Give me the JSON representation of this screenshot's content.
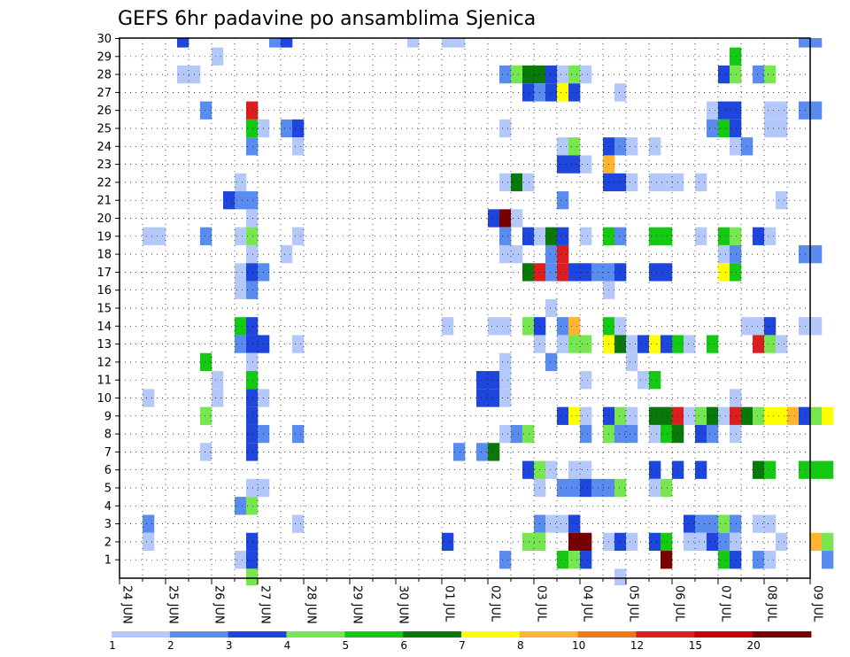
{
  "chart_data": {
    "type": "heatmap",
    "title": "GEFS 6hr padavine po ansamblima Sjenica",
    "xlabel": "",
    "ylabel": "",
    "y_ticks": [
      "1",
      "2",
      "3",
      "4",
      "5",
      "6",
      "7",
      "8",
      "9",
      "10",
      "11",
      "12",
      "13",
      "14",
      "15",
      "16",
      "17",
      "18",
      "19",
      "20",
      "21",
      "22",
      "23",
      "24",
      "25",
      "26",
      "27",
      "28",
      "29",
      "30"
    ],
    "x_ticks": [
      "24 JUN",
      "25 JUN",
      "26 JUN",
      "27 JUN",
      "28 JUN",
      "29 JUN",
      "30 JUN",
      "01 JUL",
      "02 JUL",
      "03 JUL",
      "04 JUL",
      "05 JUL",
      "06 JUL",
      "07 JUL",
      "08 JUL",
      "09 JUL"
    ],
    "colorbar": {
      "ticks": [
        "1",
        "2",
        "3",
        "4",
        "5",
        "6",
        "7",
        "8",
        "10",
        "12",
        "15",
        "20"
      ],
      "colors": [
        "#b4c8fa",
        "#5a8cf0",
        "#1e46dc",
        "#78e650",
        "#14c814",
        "#0a780a",
        "#ffff00",
        "#ffb432",
        "#f07814",
        "#dc1e1e",
        "#c80000",
        "#780000"
      ]
    },
    "grid": true,
    "cells": [
      [
        2.5,
        30,
        3
      ],
      [
        6.5,
        30,
        2
      ],
      [
        7,
        30,
        3
      ],
      [
        12.5,
        30,
        1
      ],
      [
        14,
        30,
        1
      ],
      [
        14.5,
        30,
        1
      ],
      [
        29.5,
        30,
        2
      ],
      [
        30,
        30,
        2
      ],
      [
        4,
        29,
        1
      ],
      [
        26.5,
        29,
        5
      ],
      [
        2.5,
        28,
        1
      ],
      [
        3,
        28,
        1
      ],
      [
        16.5,
        28,
        2
      ],
      [
        17,
        28,
        4
      ],
      [
        17.5,
        28,
        6
      ],
      [
        18,
        28,
        6
      ],
      [
        18.5,
        28,
        3
      ],
      [
        19,
        28,
        1
      ],
      [
        19.5,
        28,
        4
      ],
      [
        20,
        28,
        1
      ],
      [
        26,
        28,
        3
      ],
      [
        26.5,
        28,
        4
      ],
      [
        27.5,
        28,
        2
      ],
      [
        28,
        28,
        4
      ],
      [
        17.5,
        27,
        3
      ],
      [
        18,
        27,
        2
      ],
      [
        18.5,
        27,
        3
      ],
      [
        19,
        27,
        7
      ],
      [
        19.5,
        27,
        3
      ],
      [
        21.5,
        27,
        1
      ],
      [
        3.5,
        26,
        2
      ],
      [
        5.5,
        26,
        10
      ],
      [
        25.5,
        26,
        1
      ],
      [
        26,
        26,
        3
      ],
      [
        26.5,
        26,
        3
      ],
      [
        28,
        26,
        1
      ],
      [
        28.5,
        26,
        1
      ],
      [
        29.5,
        26,
        2
      ],
      [
        30,
        26,
        2
      ],
      [
        5.5,
        25,
        5
      ],
      [
        6,
        25,
        1
      ],
      [
        7,
        25,
        2
      ],
      [
        7.5,
        25,
        3
      ],
      [
        16.5,
        25,
        1
      ],
      [
        25.5,
        25,
        2
      ],
      [
        26,
        25,
        5
      ],
      [
        26.5,
        25,
        3
      ],
      [
        28,
        25,
        1
      ],
      [
        28.5,
        25,
        1
      ],
      [
        5.5,
        24,
        2
      ],
      [
        7.5,
        24,
        1
      ],
      [
        19,
        24,
        1
      ],
      [
        19.5,
        24,
        4
      ],
      [
        21,
        24,
        3
      ],
      [
        21.5,
        24,
        2
      ],
      [
        22,
        24,
        1
      ],
      [
        23,
        24,
        1
      ],
      [
        26.5,
        24,
        1
      ],
      [
        27,
        24,
        2
      ],
      [
        19,
        23,
        3
      ],
      [
        19.5,
        23,
        3
      ],
      [
        20,
        23,
        1
      ],
      [
        21,
        23,
        8
      ],
      [
        5,
        22,
        1
      ],
      [
        16.5,
        22,
        1
      ],
      [
        17,
        22,
        6
      ],
      [
        17.5,
        22,
        1
      ],
      [
        21,
        22,
        3
      ],
      [
        21.5,
        22,
        3
      ],
      [
        22,
        22,
        1
      ],
      [
        23,
        22,
        1
      ],
      [
        23.5,
        22,
        1
      ],
      [
        24,
        22,
        1
      ],
      [
        25,
        22,
        1
      ],
      [
        4.5,
        21,
        3
      ],
      [
        5,
        21,
        2
      ],
      [
        5.5,
        21,
        2
      ],
      [
        19,
        21,
        2
      ],
      [
        28.5,
        21,
        1
      ],
      [
        5.5,
        20,
        1
      ],
      [
        16,
        20,
        3
      ],
      [
        16.5,
        20,
        12
      ],
      [
        17,
        20,
        1
      ],
      [
        1,
        19,
        1
      ],
      [
        1.5,
        19,
        1
      ],
      [
        3.5,
        19,
        2
      ],
      [
        5,
        19,
        1
      ],
      [
        5.5,
        19,
        4
      ],
      [
        7.5,
        19,
        1
      ],
      [
        16.5,
        19,
        2
      ],
      [
        17.5,
        19,
        3
      ],
      [
        18,
        19,
        1
      ],
      [
        18.5,
        19,
        6
      ],
      [
        19,
        19,
        3
      ],
      [
        20,
        19,
        1
      ],
      [
        21,
        19,
        5
      ],
      [
        21.5,
        19,
        2
      ],
      [
        23,
        19,
        5
      ],
      [
        23.5,
        19,
        5
      ],
      [
        25,
        19,
        1
      ],
      [
        26,
        19,
        5
      ],
      [
        26.5,
        19,
        4
      ],
      [
        27.5,
        19,
        3
      ],
      [
        28,
        19,
        1
      ],
      [
        5.5,
        18,
        1
      ],
      [
        7,
        18,
        1
      ],
      [
        16.5,
        18,
        1
      ],
      [
        17,
        18,
        1
      ],
      [
        18.5,
        18,
        2
      ],
      [
        19,
        18,
        10
      ],
      [
        26,
        18,
        1
      ],
      [
        26.5,
        18,
        2
      ],
      [
        29.5,
        18,
        2
      ],
      [
        30,
        18,
        2
      ],
      [
        5,
        17,
        1
      ],
      [
        5.5,
        17,
        3
      ],
      [
        6,
        17,
        2
      ],
      [
        17.5,
        17,
        6
      ],
      [
        18,
        17,
        10
      ],
      [
        18.5,
        17,
        2
      ],
      [
        19,
        17,
        10
      ],
      [
        19.5,
        17,
        3
      ],
      [
        20,
        17,
        3
      ],
      [
        20.5,
        17,
        2
      ],
      [
        21,
        17,
        2
      ],
      [
        21.5,
        17,
        3
      ],
      [
        23,
        17,
        3
      ],
      [
        23.5,
        17,
        3
      ],
      [
        26,
        17,
        7
      ],
      [
        26.5,
        17,
        5
      ],
      [
        5,
        16,
        1
      ],
      [
        5.5,
        16,
        2
      ],
      [
        21,
        16,
        1
      ],
      [
        18.5,
        15,
        1
      ],
      [
        5,
        14,
        5
      ],
      [
        5.5,
        14,
        3
      ],
      [
        14,
        14,
        1
      ],
      [
        16,
        14,
        1
      ],
      [
        16.5,
        14,
        1
      ],
      [
        17.5,
        14,
        4
      ],
      [
        18,
        14,
        3
      ],
      [
        19,
        14,
        2
      ],
      [
        19.5,
        14,
        8
      ],
      [
        21,
        14,
        5
      ],
      [
        21.5,
        14,
        1
      ],
      [
        27,
        14,
        1
      ],
      [
        27.5,
        14,
        1
      ],
      [
        28,
        14,
        3
      ],
      [
        29.5,
        14,
        1
      ],
      [
        30,
        14,
        1
      ],
      [
        5,
        13,
        2
      ],
      [
        5.5,
        13,
        3
      ],
      [
        6,
        13,
        3
      ],
      [
        7.5,
        13,
        1
      ],
      [
        18,
        13,
        1
      ],
      [
        19,
        13,
        1
      ],
      [
        19.5,
        13,
        4
      ],
      [
        20,
        13,
        4
      ],
      [
        21,
        13,
        7
      ],
      [
        21.5,
        13,
        6
      ],
      [
        22,
        13,
        1
      ],
      [
        22.5,
        13,
        3
      ],
      [
        23,
        13,
        7
      ],
      [
        23.5,
        13,
        3
      ],
      [
        24,
        13,
        5
      ],
      [
        24.5,
        13,
        1
      ],
      [
        25.5,
        13,
        5
      ],
      [
        27.5,
        13,
        10
      ],
      [
        28,
        13,
        4
      ],
      [
        28.5,
        13,
        1
      ],
      [
        3.5,
        12,
        5
      ],
      [
        5.5,
        12,
        1
      ],
      [
        16.5,
        12,
        1
      ],
      [
        18.5,
        12,
        2
      ],
      [
        22,
        12,
        1
      ],
      [
        4,
        11,
        1
      ],
      [
        5.5,
        11,
        5
      ],
      [
        15.5,
        11,
        3
      ],
      [
        16,
        11,
        3
      ],
      [
        16.5,
        11,
        1
      ],
      [
        20,
        11,
        1
      ],
      [
        22.5,
        11,
        1
      ],
      [
        23,
        11,
        5
      ],
      [
        1,
        10,
        1
      ],
      [
        4,
        10,
        1
      ],
      [
        5.5,
        10,
        3
      ],
      [
        6,
        10,
        1
      ],
      [
        15.5,
        10,
        3
      ],
      [
        16,
        10,
        3
      ],
      [
        16.5,
        10,
        1
      ],
      [
        26.5,
        10,
        1
      ],
      [
        3.5,
        9,
        4
      ],
      [
        5.5,
        9,
        3
      ],
      [
        19,
        9,
        3
      ],
      [
        19.5,
        9,
        7
      ],
      [
        20,
        9,
        1
      ],
      [
        21,
        9,
        3
      ],
      [
        21.5,
        9,
        4
      ],
      [
        22,
        9,
        1
      ],
      [
        23,
        9,
        6
      ],
      [
        23.5,
        9,
        6
      ],
      [
        24,
        9,
        10
      ],
      [
        24.5,
        9,
        1
      ],
      [
        25,
        9,
        4
      ],
      [
        25.5,
        9,
        6
      ],
      [
        26,
        9,
        1
      ],
      [
        26.5,
        9,
        10
      ],
      [
        27,
        9,
        6
      ],
      [
        27.5,
        9,
        4
      ],
      [
        28,
        9,
        7
      ],
      [
        28.5,
        9,
        7
      ],
      [
        29,
        9,
        8
      ],
      [
        29.5,
        9,
        3
      ],
      [
        30,
        9,
        4
      ],
      [
        30.5,
        9,
        7
      ],
      [
        5.5,
        8,
        3
      ],
      [
        6,
        8,
        2
      ],
      [
        7.5,
        8,
        2
      ],
      [
        16.5,
        8,
        1
      ],
      [
        17,
        8,
        2
      ],
      [
        17.5,
        8,
        4
      ],
      [
        20,
        8,
        2
      ],
      [
        21,
        8,
        4
      ],
      [
        21.5,
        8,
        2
      ],
      [
        22,
        8,
        2
      ],
      [
        23,
        8,
        1
      ],
      [
        23.5,
        8,
        5
      ],
      [
        24,
        8,
        6
      ],
      [
        25,
        8,
        3
      ],
      [
        25.5,
        8,
        2
      ],
      [
        26.5,
        8,
        1
      ],
      [
        3.5,
        7,
        1
      ],
      [
        5.5,
        7,
        3
      ],
      [
        14.5,
        7,
        2
      ],
      [
        15.5,
        7,
        2
      ],
      [
        16,
        7,
        6
      ],
      [
        17.5,
        6,
        3
      ],
      [
        18,
        6,
        4
      ],
      [
        18.5,
        6,
        1
      ],
      [
        19.5,
        6,
        1
      ],
      [
        20,
        6,
        1
      ],
      [
        23,
        6,
        3
      ],
      [
        24,
        6,
        3
      ],
      [
        25,
        6,
        3
      ],
      [
        27.5,
        6,
        6
      ],
      [
        28,
        6,
        5
      ],
      [
        29.5,
        6,
        5
      ],
      [
        30,
        6,
        5
      ],
      [
        30.5,
        6,
        5
      ],
      [
        5.5,
        5,
        1
      ],
      [
        6,
        5,
        1
      ],
      [
        18,
        5,
        1
      ],
      [
        19,
        5,
        2
      ],
      [
        19.5,
        5,
        2
      ],
      [
        20,
        5,
        3
      ],
      [
        20.5,
        5,
        2
      ],
      [
        21,
        5,
        2
      ],
      [
        21.5,
        5,
        4
      ],
      [
        23,
        5,
        1
      ],
      [
        23.5,
        5,
        4
      ],
      [
        5,
        4,
        2
      ],
      [
        5.5,
        4,
        4
      ],
      [
        1,
        3,
        2
      ],
      [
        7.5,
        3,
        1
      ],
      [
        18,
        3,
        2
      ],
      [
        18.5,
        3,
        1
      ],
      [
        19,
        3,
        1
      ],
      [
        19.5,
        3,
        3
      ],
      [
        24.5,
        3,
        3
      ],
      [
        25,
        3,
        2
      ],
      [
        25.5,
        3,
        2
      ],
      [
        26,
        3,
        4
      ],
      [
        26.5,
        3,
        2
      ],
      [
        27.5,
        3,
        1
      ],
      [
        28,
        3,
        1
      ],
      [
        1,
        2,
        1
      ],
      [
        5.5,
        2,
        3
      ],
      [
        14,
        2,
        3
      ],
      [
        17.5,
        2,
        4
      ],
      [
        18,
        2,
        4
      ],
      [
        19.5,
        2,
        12
      ],
      [
        20,
        2,
        12
      ],
      [
        21,
        2,
        1
      ],
      [
        21.5,
        2,
        3
      ],
      [
        22,
        2,
        1
      ],
      [
        23,
        2,
        3
      ],
      [
        23.5,
        2,
        5
      ],
      [
        24.5,
        2,
        1
      ],
      [
        25,
        2,
        1
      ],
      [
        25.5,
        2,
        3
      ],
      [
        26,
        2,
        2
      ],
      [
        26.5,
        2,
        1
      ],
      [
        28.5,
        2,
        1
      ],
      [
        30,
        2,
        8
      ],
      [
        30.5,
        2,
        4
      ],
      [
        5,
        1,
        1
      ],
      [
        5.5,
        1,
        3
      ],
      [
        16.5,
        1,
        2
      ],
      [
        19,
        1,
        5
      ],
      [
        19.5,
        1,
        4
      ],
      [
        20,
        1,
        3
      ],
      [
        23.5,
        1,
        12
      ],
      [
        26,
        1,
        5
      ],
      [
        26.5,
        1,
        3
      ],
      [
        27.5,
        1,
        2
      ],
      [
        28,
        1,
        1
      ],
      [
        30.5,
        1,
        2
      ],
      [
        5.5,
        0,
        4
      ],
      [
        21.5,
        0,
        1
      ]
    ]
  }
}
